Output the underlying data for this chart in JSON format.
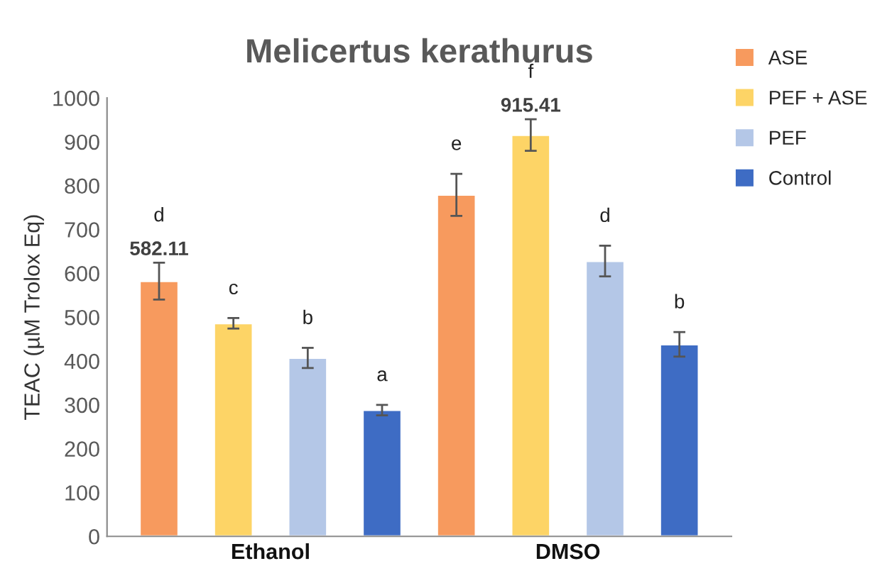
{
  "chart_data": {
    "type": "bar",
    "title": "Melicertus kerathurus",
    "ylabel": "TEAC (µM Trolox Eq)",
    "categories": [
      "Ethanol",
      "DMSO"
    ],
    "series": [
      {
        "name": "ASE",
        "color": "#f79a5e",
        "values": [
          582.11,
          779
        ],
        "errors": [
          42,
          48
        ],
        "value_labels": [
          "582.11",
          null
        ]
      },
      {
        "name": "PEF + ASE",
        "color": "#fdd466",
        "values": [
          486,
          915.41
        ],
        "errors": [
          12,
          36
        ],
        "value_labels": [
          null,
          "915.41"
        ]
      },
      {
        "name": "PEF",
        "color": "#b4c7e7",
        "values": [
          407,
          628
        ],
        "errors": [
          23,
          35
        ]
      },
      {
        "name": "Control",
        "color": "#3e6cc4",
        "values": [
          288,
          438
        ],
        "errors": [
          12,
          28
        ]
      }
    ],
    "annotations": [
      "d",
      "c",
      "b",
      "a",
      "e",
      "f",
      "d",
      "b"
    ],
    "ylim": [
      0,
      1000
    ],
    "yticks": [
      0,
      100,
      200,
      300,
      400,
      500,
      600,
      700,
      800,
      900,
      1000
    ],
    "grid": false,
    "legend": "top right"
  }
}
